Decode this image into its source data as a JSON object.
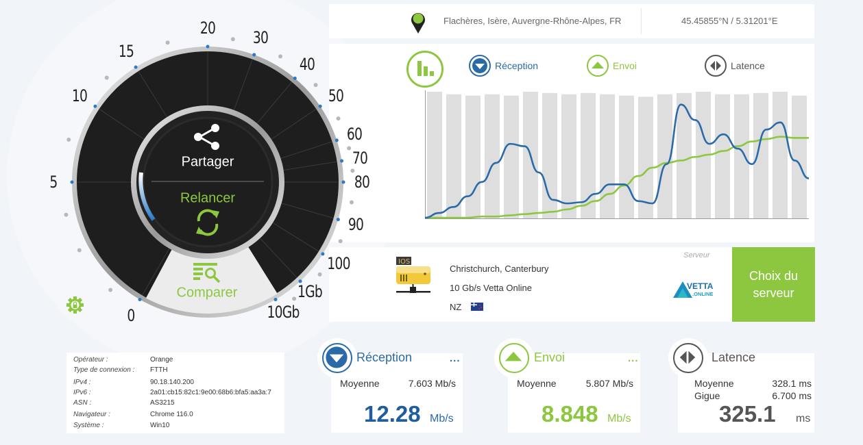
{
  "location": {
    "place": "Flachères, Isère, Auvergne-Rhône-Alpes, FR",
    "coordinates": "45.45855°N / 5.31201°E",
    "icon": "map-pin-icon"
  },
  "gauge": {
    "scale_labels": [
      "0",
      "5",
      "10",
      "15",
      "20",
      "30",
      "40",
      "50",
      "60",
      "70",
      "80",
      "90",
      "100",
      "1Gb",
      "10Gb"
    ],
    "share_label": "Partager",
    "relaunch_label": "Relancer",
    "compare_label": "Comparer",
    "settings_icon": "gear-lock-icon"
  },
  "chart": {
    "legend": {
      "reception": "Réception",
      "upload": "Envoi",
      "latency": "Latence"
    },
    "colors": {
      "reception": "#2a6aa8",
      "upload": "#8dc63f",
      "latency": "#555555",
      "bars": "#dedede"
    }
  },
  "chart_data": {
    "type": "line",
    "title": "",
    "xlabel": "",
    "ylabel": "",
    "grid": false,
    "legend_position": "top",
    "bar_count": 20,
    "bar_heights_pct": [
      100,
      98,
      97,
      98,
      97,
      100,
      99,
      98,
      99,
      98,
      97,
      96,
      98,
      99,
      100,
      98,
      98,
      99,
      100,
      97
    ],
    "series": [
      {
        "name": "Réception",
        "color": "#2a6aa8",
        "values": [
          0,
          4,
          9,
          18,
          30,
          46,
          62,
          60,
          38,
          15,
          12,
          13,
          20,
          28,
          28,
          14,
          12,
          45,
          95,
          82,
          62,
          70,
          58,
          45,
          74,
          80,
          48,
          33
        ]
      },
      {
        "name": "Envoi",
        "color": "#8dc63f",
        "values": [
          0,
          0,
          0,
          0,
          1,
          1,
          2,
          3,
          4,
          5,
          7,
          10,
          14,
          20,
          27,
          35,
          42,
          46,
          48,
          51,
          53,
          56,
          60,
          64,
          66,
          68,
          67,
          67
        ]
      }
    ]
  },
  "server": {
    "section_label": "Serveur",
    "city": "Christchurch, Canterbury",
    "name": "10 Gb/s Vetta Online",
    "country": "NZ",
    "flag_icon": "new-zealand-flag-icon",
    "logo_text_top": "VETTA",
    "logo_text_bottom": ".ONLINE",
    "choose_button": "Choix du serveur"
  },
  "connection_info": [
    {
      "key": "Opérateur :",
      "value": "Orange"
    },
    {
      "key": "Type de connexion :",
      "value": "FTTH"
    },
    {
      "key": "IPv4 :",
      "value": "90.18.140.200"
    },
    {
      "key": "IPv6 :",
      "value": "2a01:cb15:82c1:9e00:68b6:bfa5:aa3a:7"
    },
    {
      "key": "ASN :",
      "value": "AS3215"
    },
    {
      "key": "Navigateur :",
      "value": "Chrome 116.0"
    },
    {
      "key": "Système :",
      "value": "Win10"
    }
  ],
  "results": {
    "reception": {
      "title": "Réception",
      "more": "...",
      "avg_label": "Moyenne",
      "avg_value": "7.603 Mb/s",
      "value": "12.28",
      "unit": "Mb/s"
    },
    "upload": {
      "title": "Envoi",
      "more": "...",
      "avg_label": "Moyenne",
      "avg_value": "5.807 Mb/s",
      "value": "8.848",
      "unit": "Mb/s"
    },
    "latency": {
      "title": "Latence",
      "avg_label": "Moyenne",
      "avg_value": "328.1 ms",
      "jitter_label": "Gigue",
      "jitter_value": "6.700 ms",
      "value": "325.1",
      "unit": "ms"
    }
  }
}
